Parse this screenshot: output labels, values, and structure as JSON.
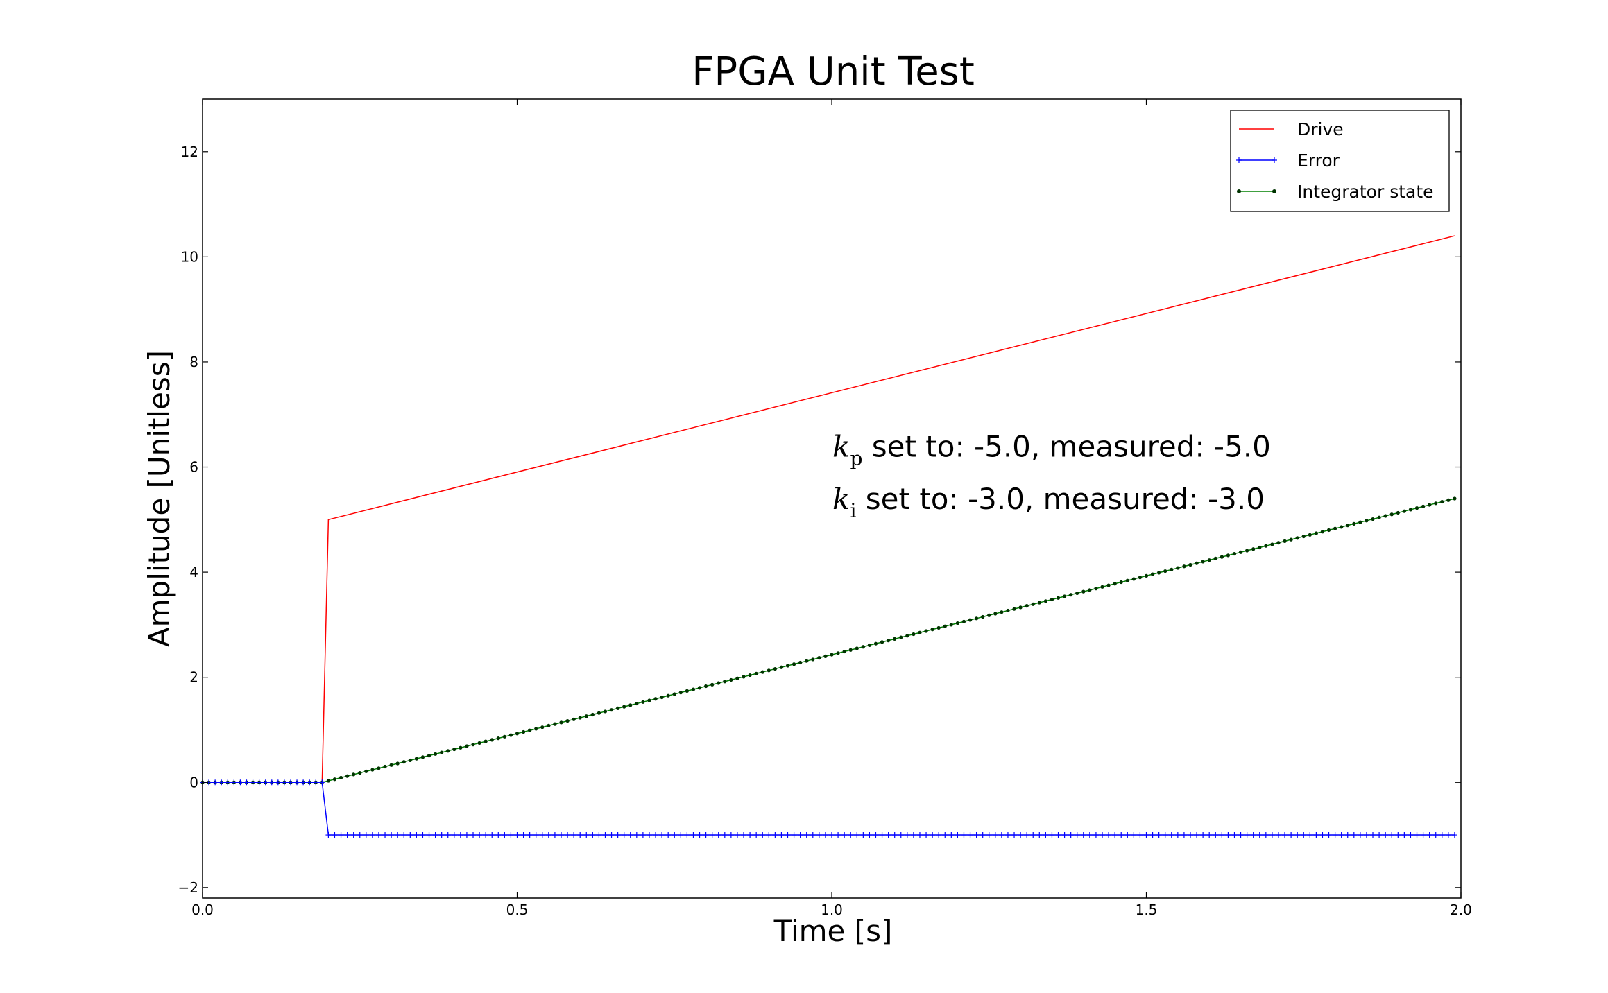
{
  "chart_data": {
    "type": "line",
    "title": "FPGA Unit Test",
    "xlabel": "Time [s]",
    "ylabel": "Amplitude [Unitless]",
    "xlim": [
      0.0,
      2.0
    ],
    "ylim": [
      -2.2,
      13.0
    ],
    "x_ticks": [
      0.0,
      0.5,
      1.0,
      1.5,
      2.0
    ],
    "x_tick_labels": [
      "0.0",
      "0.5",
      "1.0",
      "1.5",
      "2.0"
    ],
    "y_ticks": [
      -2,
      0,
      2,
      4,
      6,
      8,
      10,
      12
    ],
    "y_tick_labels": [
      "−2",
      "0",
      "2",
      "4",
      "6",
      "8",
      "10",
      "12"
    ],
    "grid": false,
    "legend_position": "top-right",
    "series": [
      {
        "name": "Drive",
        "color": "#ff0000",
        "marker": "none",
        "x": [
          0.0,
          0.19,
          0.2,
          1.99
        ],
        "y": [
          0.0,
          0.0,
          5.0,
          10.4
        ]
      },
      {
        "name": "Error",
        "color": "#0000ff",
        "marker": "plus",
        "x_start": 0.0,
        "x_end": 1.99,
        "x_step": 0.01,
        "values": "0 for t < 0.20, −1 for t ≥ 0.20"
      },
      {
        "name": "Integrator state",
        "color": "#008000",
        "marker": "star",
        "x_start": 0.0,
        "x_end": 1.99,
        "x_step": 0.01,
        "values": "0 for t ≤ 0.19, rising linearly to 5.4 at t = 1.99"
      }
    ],
    "annotations": [
      {
        "symbol": "k",
        "subscript": "p",
        "text": " set to: -5.0, measured: -5.0"
      },
      {
        "symbol": "k",
        "subscript": "i",
        "text": " set to: -3.0, measured: -3.0"
      }
    ]
  }
}
